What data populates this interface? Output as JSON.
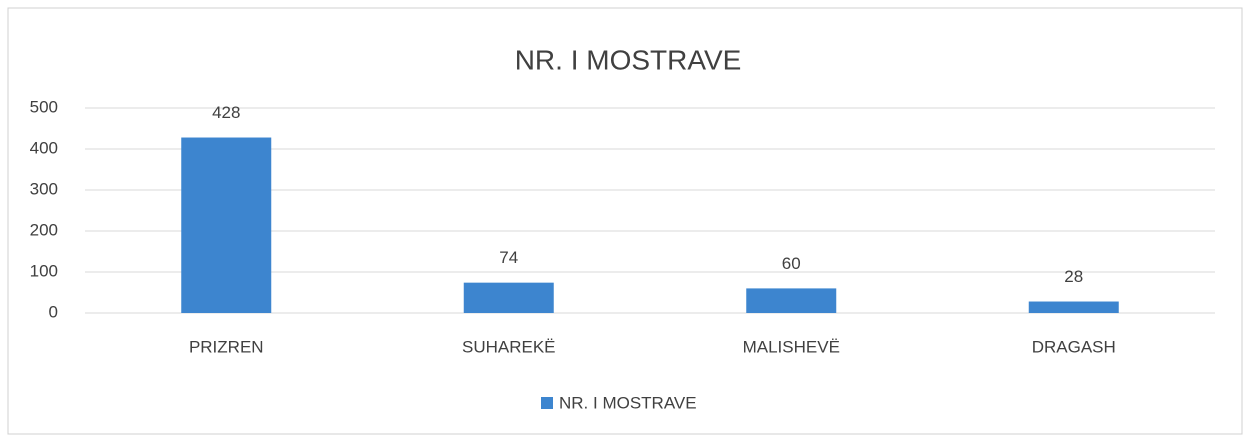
{
  "chart_data": {
    "type": "bar",
    "title": "NR. I MOSTRAVE",
    "categories": [
      "PRIZREN",
      "SUHAREKË",
      "MALISHEVË",
      "DRAGASH"
    ],
    "series": [
      {
        "name": "NR. I MOSTRAVE",
        "color": "#3d85cf",
        "values": [
          428,
          74,
          60,
          28
        ]
      }
    ],
    "ylim": [
      0,
      500
    ],
    "yticks": [
      0,
      100,
      200,
      300,
      400,
      500
    ],
    "grid": true,
    "data_labels": true,
    "legend": "bottom"
  }
}
